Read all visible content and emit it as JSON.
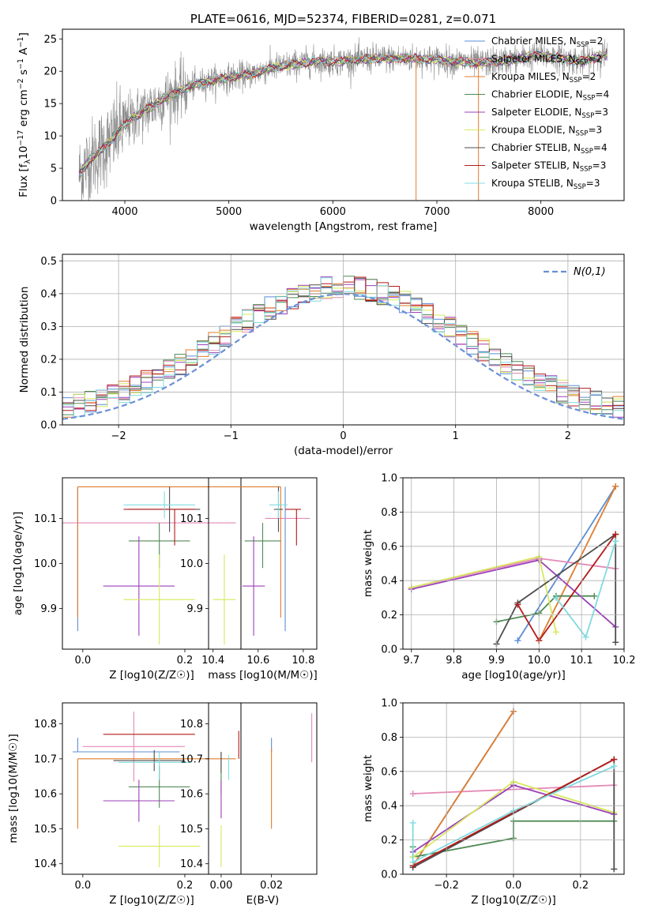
{
  "colors": {
    "Chabrier MILES": "#5b8dd6",
    "Salpeter MILES": "#e58ab6",
    "Kroupa MILES": "#e07b2c",
    "Chabrier ELODIE": "#4f8a55",
    "Salpeter ELODIE": "#9b3fb8",
    "Kroupa ELODIE": "#d7e85c",
    "Chabrier STELIB": "#4d4d4d",
    "Salpeter STELIB": "#b31b1b",
    "Kroupa STELIB": "#7fdbe0",
    "spectrum": "#8c8c8c",
    "gauss": "#6a8fd8",
    "grid": "#b0b0b0"
  },
  "chart_data": [
    {
      "id": "spectrum",
      "type": "line",
      "title": "PLATE=0616, MJD=52374, FIBERID=0281, z=0.071",
      "xlabel": "wavelength [Angstrom, rest frame]",
      "ylabel_parts": [
        "Flux [f",
        "λ",
        "10",
        "−17",
        " erg cm",
        "−2",
        " s",
        "−1",
        " A",
        "−1",
        "]"
      ],
      "xlim": [
        3400,
        8800
      ],
      "ylim": [
        0,
        26.5
      ],
      "xticks": [
        4000,
        5000,
        6000,
        7000,
        8000
      ],
      "yticks": [
        0,
        5,
        10,
        15,
        20,
        25
      ],
      "grid": false,
      "legend_position": "right",
      "continuum": [
        [
          3560,
          4
        ],
        [
          3650,
          6
        ],
        [
          3750,
          7.5
        ],
        [
          3850,
          9
        ],
        [
          3950,
          11
        ],
        [
          4050,
          12.5
        ],
        [
          4200,
          14
        ],
        [
          4400,
          16
        ],
        [
          4600,
          17.5
        ],
        [
          4800,
          18.5
        ],
        [
          5000,
          19
        ],
        [
          5200,
          19.5
        ],
        [
          5400,
          20.5
        ],
        [
          5600,
          21
        ],
        [
          5800,
          21.5
        ],
        [
          6000,
          21.5
        ],
        [
          6200,
          21.7
        ],
        [
          6400,
          22
        ],
        [
          6600,
          22
        ],
        [
          6800,
          22
        ],
        [
          7000,
          21.8
        ],
        [
          7200,
          21.5
        ],
        [
          7400,
          21.3
        ],
        [
          7600,
          21.5
        ],
        [
          7800,
          22
        ],
        [
          8000,
          22.5
        ],
        [
          8200,
          22
        ],
        [
          8400,
          21.5
        ],
        [
          8600,
          22.5
        ]
      ],
      "spikes_to_zero": [
        6800,
        7400
      ],
      "legend": [
        {
          "name": "Chabrier MILES",
          "nssp": "2"
        },
        {
          "name": "Salpeter MILES",
          "nssp": "2"
        },
        {
          "name": "Kroupa MILES",
          "nssp": "2"
        },
        {
          "name": "Chabrier ELODIE",
          "nssp": "4"
        },
        {
          "name": "Salpeter ELODIE",
          "nssp": "3"
        },
        {
          "name": "Kroupa ELODIE",
          "nssp": "3"
        },
        {
          "name": "Chabrier STELIB",
          "nssp": "4"
        },
        {
          "name": "Salpeter STELIB",
          "nssp": "3"
        },
        {
          "name": "Kroupa STELIB",
          "nssp": "3"
        }
      ]
    },
    {
      "id": "residuals",
      "type": "step-histogram",
      "xlabel": "(data-model)/error",
      "ylabel": "Normed distribution",
      "xlim": [
        -2.5,
        2.5
      ],
      "ylim": [
        0,
        0.52
      ],
      "xticks": [
        -2,
        -1,
        0,
        1,
        2
      ],
      "yticks": [
        0.0,
        0.1,
        0.2,
        0.3,
        0.4,
        0.5
      ],
      "grid": true,
      "legend_position": "top-right",
      "gauss_label": "N(0,1)",
      "bin_edges_range": [
        -2.5,
        2.5
      ],
      "bin_width": 0.1
    },
    {
      "id": "age_Z",
      "type": "errorbar",
      "xlabel": "Z [log10(Z/Z☉)]",
      "ylabel": "age  [log10(age/yr)]",
      "xlim": [
        -0.04,
        0.31
      ],
      "ylim": [
        9.81,
        10.19
      ],
      "xticks": [
        0.0,
        0.2
      ],
      "yticks": [
        9.9,
        10.0,
        10.1
      ],
      "grid": false,
      "points": [
        {
          "model": "Chabrier MILES",
          "x": -0.01,
          "y": 10.01,
          "xerr": [
            0,
            0
          ],
          "yerr": [
            0.16,
            0.16
          ]
        },
        {
          "model": "Salpeter MILES",
          "x": 0.1,
          "y": 10.09,
          "xerr": [
            0.2,
            0.2
          ],
          "yerr": [
            0,
            0
          ]
        },
        {
          "model": "Kroupa MILES",
          "x": -0.01,
          "y": 10.17,
          "xerr": [
            0,
            0.31
          ],
          "yerr": [
            0.29,
            0
          ]
        },
        {
          "model": "Chabrier ELODIE",
          "x": 0.15,
          "y": 10.05,
          "xerr": [
            0.06,
            0.06
          ],
          "yerr": [
            0.06,
            0.04
          ]
        },
        {
          "model": "Salpeter ELODIE",
          "x": 0.11,
          "y": 9.95,
          "xerr": [
            0.07,
            0.07
          ],
          "yerr": [
            0.11,
            0.11
          ]
        },
        {
          "model": "Kroupa ELODIE",
          "x": 0.15,
          "y": 9.92,
          "xerr": [
            0.07,
            0.07
          ],
          "yerr": [
            0.1,
            0.1
          ]
        },
        {
          "model": "Chabrier STELIB",
          "x": 0.17,
          "y": 10.12,
          "xerr": [
            0.08,
            0.06
          ],
          "yerr": [
            0.05,
            0.05
          ]
        },
        {
          "model": "Salpeter STELIB",
          "x": 0.18,
          "y": 10.12,
          "xerr": [
            0.1,
            0.04
          ],
          "yerr": [
            0.08,
            0
          ]
        },
        {
          "model": "Kroupa STELIB",
          "x": 0.16,
          "y": 10.13,
          "xerr": [
            0.08,
            0.06
          ],
          "yerr": [
            0.03,
            0.03
          ]
        }
      ]
    },
    {
      "id": "age_mass",
      "type": "errorbar",
      "xlabel": "mass [log10(M/M☉)]",
      "ylabel": "",
      "xlim": [
        10.38,
        10.86
      ],
      "ylim": [
        9.81,
        10.19
      ],
      "xticks": [
        10.4,
        10.6,
        10.8
      ],
      "yticks": [
        9.9,
        10.0,
        10.1
      ],
      "grid": false,
      "points": [
        {
          "model": "Chabrier MILES",
          "x": 10.72,
          "y": 10.01,
          "xerr": [
            0,
            0
          ],
          "yerr": [
            0.16,
            0.16
          ]
        },
        {
          "model": "Salpeter MILES",
          "x": 10.73,
          "y": 10.1,
          "xerr": [
            0.1,
            0.1
          ],
          "yerr": [
            0,
            0
          ]
        },
        {
          "model": "Kroupa MILES",
          "x": 10.7,
          "y": 10.17,
          "xerr": [
            0.2,
            0
          ],
          "yerr": [
            0.29,
            0
          ]
        },
        {
          "model": "Chabrier ELODIE",
          "x": 10.62,
          "y": 10.05,
          "xerr": [
            0.08,
            0.08
          ],
          "yerr": [
            0.06,
            0.04
          ]
        },
        {
          "model": "Salpeter ELODIE",
          "x": 10.58,
          "y": 9.95,
          "xerr": [
            0.05,
            0.05
          ],
          "yerr": [
            0.11,
            0.11
          ]
        },
        {
          "model": "Kroupa ELODIE",
          "x": 10.45,
          "y": 9.92,
          "xerr": [
            0.05,
            0.05
          ],
          "yerr": [
            0.1,
            0.1
          ]
        },
        {
          "model": "Chabrier STELIB",
          "x": 10.69,
          "y": 10.12,
          "xerr": [
            0.02,
            0.02
          ],
          "yerr": [
            0.05,
            0.05
          ]
        },
        {
          "model": "Salpeter STELIB",
          "x": 10.77,
          "y": 10.12,
          "xerr": [
            0.05,
            0.02
          ],
          "yerr": [
            0.08,
            0
          ]
        },
        {
          "model": "Kroupa STELIB",
          "x": 10.69,
          "y": 10.13,
          "xerr": [
            0.04,
            0.04
          ],
          "yerr": [
            0.03,
            0.03
          ]
        }
      ]
    },
    {
      "id": "mw_age",
      "type": "line",
      "xlabel": "age  [log10(age/yr)]",
      "ylabel": "mass weight",
      "xlim": [
        9.68,
        10.2
      ],
      "ylim": [
        0,
        1
      ],
      "xticks": [
        9.7,
        9.8,
        9.9,
        10.0,
        10.1,
        10.2
      ],
      "yticks": [
        0.0,
        0.2,
        0.4,
        0.6,
        0.8,
        1.0
      ],
      "grid": true,
      "series": [
        {
          "model": "Chabrier MILES",
          "x": [
            9.95,
            10.18
          ],
          "y": [
            0.05,
            0.95
          ]
        },
        {
          "model": "Salpeter MILES",
          "x": [
            9.7,
            10.0,
            10.18
          ],
          "y": [
            0.36,
            0.53,
            0.47
          ]
        },
        {
          "model": "Kroupa MILES",
          "x": [
            10.0,
            10.18
          ],
          "y": [
            0.05,
            0.95
          ]
        },
        {
          "model": "Chabrier ELODIE",
          "x": [
            9.9,
            10.0,
            10.04,
            10.13
          ],
          "y": [
            0.16,
            0.21,
            0.31,
            0.31
          ]
        },
        {
          "model": "Salpeter ELODIE",
          "x": [
            9.7,
            10.0,
            10.18
          ],
          "y": [
            0.35,
            0.52,
            0.13
          ]
        },
        {
          "model": "Kroupa ELODIE",
          "x": [
            9.7,
            10.0,
            10.04
          ],
          "y": [
            0.36,
            0.54,
            0.1
          ]
        },
        {
          "model": "Chabrier STELIB",
          "x": [
            9.9,
            9.95,
            10.18,
            10.18
          ],
          "y": [
            0.03,
            0.27,
            0.67,
            0.04
          ]
        },
        {
          "model": "Salpeter STELIB",
          "x": [
            9.95,
            10.0,
            10.18
          ],
          "y": [
            0.26,
            0.05,
            0.67
          ]
        },
        {
          "model": "Kroupa STELIB",
          "x": [
            10.04,
            10.11,
            10.18
          ],
          "y": [
            0.3,
            0.07,
            0.63
          ]
        }
      ]
    },
    {
      "id": "mass_Z",
      "type": "errorbar",
      "xlabel": "Z [log10(Z/Z☉)]",
      "ylabel": "mass [log10(M/M☉)]",
      "xlim": [
        -0.04,
        0.31
      ],
      "ylim": [
        10.37,
        10.86
      ],
      "xticks": [
        0.0,
        0.2
      ],
      "yticks": [
        10.4,
        10.5,
        10.6,
        10.7,
        10.8
      ],
      "grid": false,
      "points": [
        {
          "model": "Chabrier MILES",
          "x": -0.01,
          "y": 10.72,
          "xerr": [
            0.01,
            0.2
          ],
          "yerr": [
            0,
            0.04
          ]
        },
        {
          "model": "Salpeter MILES",
          "x": 0.1,
          "y": 10.735,
          "xerr": [
            0.1,
            0.1
          ],
          "yerr": [
            0.1,
            0.1
          ]
        },
        {
          "model": "Kroupa MILES",
          "x": -0.01,
          "y": 10.7,
          "xerr": [
            0,
            0.31
          ],
          "yerr": [
            0.2,
            0
          ]
        },
        {
          "model": "Chabrier ELODIE",
          "x": 0.15,
          "y": 10.62,
          "xerr": [
            0.06,
            0.06
          ],
          "yerr": [
            0.06,
            0.06
          ]
        },
        {
          "model": "Salpeter ELODIE",
          "x": 0.11,
          "y": 10.58,
          "xerr": [
            0.07,
            0.07
          ],
          "yerr": [
            0.06,
            0.06
          ]
        },
        {
          "model": "Kroupa ELODIE",
          "x": 0.15,
          "y": 10.45,
          "xerr": [
            0.08,
            0.08
          ],
          "yerr": [
            0.06,
            0.06
          ]
        },
        {
          "model": "Chabrier STELIB",
          "x": 0.14,
          "y": 10.695,
          "xerr": [
            0.08,
            0.06
          ],
          "yerr": [
            0.03,
            0.03
          ]
        },
        {
          "model": "Salpeter STELIB",
          "x": 0.13,
          "y": 10.77,
          "xerr": [
            0.09,
            0.09
          ],
          "yerr": [
            0,
            0
          ]
        },
        {
          "model": "Kroupa STELIB",
          "x": 0.15,
          "y": 10.69,
          "xerr": [
            0.08,
            0.06
          ],
          "yerr": [
            0.05,
            0.03
          ]
        }
      ]
    },
    {
      "id": "mass_EBV",
      "type": "errorbar",
      "xlabel": "E(B-V)",
      "ylabel": "",
      "xlim": [
        -0.005,
        0.038
      ],
      "ylim": [
        10.37,
        10.86
      ],
      "xticks": [
        0.0,
        0.02
      ],
      "yticks": [
        10.4,
        10.5,
        10.6,
        10.7,
        10.8
      ],
      "grid": false,
      "points": [
        {
          "model": "Chabrier MILES",
          "x": 0.02,
          "y": 10.72,
          "xerr": [
            0,
            0
          ],
          "yerr": [
            0,
            0.04
          ]
        },
        {
          "model": "Salpeter MILES",
          "x": 0.036,
          "y": 10.76,
          "xerr": [
            0,
            0
          ],
          "yerr": [
            0.07,
            0.07
          ]
        },
        {
          "model": "Kroupa MILES",
          "x": 0.02,
          "y": 10.62,
          "xerr": [
            0,
            0
          ],
          "yerr": [
            0.12,
            0.11
          ]
        },
        {
          "model": "Chabrier ELODIE",
          "x": 0.0,
          "y": 10.66,
          "xerr": [
            0,
            0
          ],
          "yerr": [
            0.06,
            0.06
          ]
        },
        {
          "model": "Salpeter ELODIE",
          "x": 0.0,
          "y": 10.58,
          "xerr": [
            0,
            0
          ],
          "yerr": [
            0.05,
            0.06
          ]
        },
        {
          "model": "Kroupa ELODIE",
          "x": 0.0,
          "y": 10.45,
          "xerr": [
            0,
            0
          ],
          "yerr": [
            0.06,
            0.06
          ]
        },
        {
          "model": "Chabrier STELIB",
          "x": 0.0,
          "y": 10.69,
          "xerr": [
            0,
            0
          ],
          "yerr": [
            0.03,
            0.03
          ]
        },
        {
          "model": "Salpeter STELIB",
          "x": 0.007,
          "y": 10.74,
          "xerr": [
            0,
            0
          ],
          "yerr": [
            0.04,
            0.04
          ]
        },
        {
          "model": "Kroupa STELIB",
          "x": 0.003,
          "y": 10.67,
          "xerr": [
            0,
            0
          ],
          "yerr": [
            0.03,
            0.04
          ]
        }
      ]
    },
    {
      "id": "mw_Z",
      "type": "line",
      "xlabel": "Z [log10(Z/Z☉)]",
      "ylabel": "mass weight",
      "xlim": [
        -0.33,
        0.33
      ],
      "ylim": [
        0,
        1
      ],
      "xticks": [
        -0.2,
        0.0,
        0.2
      ],
      "yticks": [
        0.0,
        0.2,
        0.4,
        0.6,
        0.8,
        1.0
      ],
      "grid": true,
      "series": [
        {
          "model": "Chabrier MILES",
          "x": [
            -0.3,
            0.0
          ],
          "y": [
            0.05,
            0.95
          ]
        },
        {
          "model": "Salpeter MILES",
          "x": [
            -0.3,
            0.3
          ],
          "y": [
            0.47,
            0.52
          ]
        },
        {
          "model": "Kroupa MILES",
          "x": [
            -0.3,
            0.0
          ],
          "y": [
            0.05,
            0.95
          ]
        },
        {
          "model": "Chabrier ELODIE",
          "x": [
            -0.3,
            -0.3,
            0.0,
            0.0,
            0.3
          ],
          "y": [
            0.16,
            0.1,
            0.21,
            0.31,
            0.31
          ]
        },
        {
          "model": "Salpeter ELODIE",
          "x": [
            -0.3,
            0.0,
            0.3
          ],
          "y": [
            0.13,
            0.52,
            0.35
          ]
        },
        {
          "model": "Kroupa ELODIE",
          "x": [
            -0.3,
            0.0,
            0.3
          ],
          "y": [
            0.1,
            0.54,
            0.36
          ]
        },
        {
          "model": "Chabrier STELIB",
          "x": [
            -0.3,
            0.3,
            0.3
          ],
          "y": [
            0.04,
            0.67,
            0.03
          ]
        },
        {
          "model": "Salpeter STELIB",
          "x": [
            -0.3,
            0.3
          ],
          "y": [
            0.05,
            0.67
          ]
        },
        {
          "model": "Kroupa STELIB",
          "x": [
            -0.3,
            -0.3,
            0.0,
            0.3
          ],
          "y": [
            0.3,
            0.07,
            0.37,
            0.63
          ]
        }
      ]
    }
  ]
}
